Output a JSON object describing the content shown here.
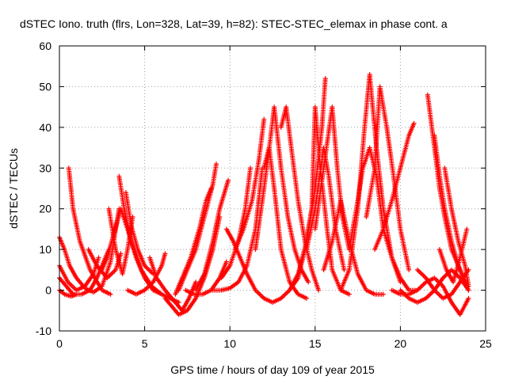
{
  "chart_data": {
    "type": "scatter",
    "title": "dSTEC Iono. truth (flrs, Lon=328, Lat=39, h=82): STEC-STEC_elemax in phase cont. a",
    "xlabel": "GPS time / hours of day 109 of year 2015",
    "ylabel": "dSTEC  / TECUs",
    "xlim": [
      0,
      25
    ],
    "ylim": [
      -10,
      60
    ],
    "xticks": [
      0,
      5,
      10,
      15,
      20,
      25
    ],
    "yticks": [
      -10,
      0,
      10,
      20,
      30,
      40,
      50,
      60
    ],
    "grid": true,
    "marker": "plus",
    "color": "#ff0000",
    "series": [
      {
        "arcs": [
          {
            "x": [
              0.0,
              0.3,
              0.6,
              1.0,
              1.5,
              2.0,
              2.5,
              3.0,
              3.3,
              3.5
            ],
            "y": [
              13,
              10,
              6,
              3,
              0.5,
              -0.5,
              1,
              7,
              15,
              20
            ]
          },
          {
            "x": [
              0.0,
              0.5,
              1.0,
              1.5,
              2.0,
              2.3
            ],
            "y": [
              6,
              2,
              0,
              1,
              4,
              8
            ]
          },
          {
            "x": [
              0.0,
              0.4,
              0.8,
              1.3,
              1.8,
              2.2,
              2.6,
              2.9
            ],
            "y": [
              3,
              1,
              -1,
              -1,
              0,
              3,
              7,
              10
            ]
          },
          {
            "x": [
              0.0,
              0.3,
              0.7,
              1.0
            ],
            "y": [
              0,
              -1,
              -1.5,
              -1
            ]
          },
          {
            "x": [
              0.55,
              0.8,
              1.2,
              1.8,
              2.5,
              3.0
            ],
            "y": [
              30,
              20,
              12,
              5,
              0,
              -1
            ]
          },
          {
            "x": [
              1.7,
              2.2,
              2.8,
              3.3,
              3.6
            ],
            "y": [
              10,
              6,
              3,
              5,
              9
            ]
          },
          {
            "x": [
              2.5,
              2.8,
              3.2,
              3.6,
              4.0,
              4.5,
              5.0,
              5.5,
              6.0
            ],
            "y": [
              5,
              8,
              14,
              20,
              15,
              8,
              3,
              0,
              -1
            ]
          },
          {
            "x": [
              2.9,
              3.3,
              3.7,
              4.0,
              4.3
            ],
            "y": [
              20,
              10,
              4,
              10,
              18
            ]
          },
          {
            "x": [
              3.5,
              3.8,
              4.2,
              4.8,
              5.4,
              6.0,
              6.5,
              7.0
            ],
            "y": [
              28,
              20,
              12,
              5,
              1,
              -1,
              -2,
              -3
            ]
          },
          {
            "x": [
              3.9,
              4.2,
              4.6,
              5.0,
              5.5
            ],
            "y": [
              24,
              16,
              10,
              6,
              4
            ]
          },
          {
            "x": [
              4.0,
              4.5,
              5.0,
              5.5,
              6.0,
              6.2
            ],
            "y": [
              0,
              -1,
              0,
              2,
              6,
              9
            ]
          },
          {
            "x": [
              5.3,
              5.7,
              6.2,
              6.8,
              7.2,
              7.6,
              8.0
            ],
            "y": [
              8,
              3,
              0,
              -3,
              -5,
              -2,
              2
            ]
          },
          {
            "x": [
              6.2,
              6.6,
              7.0,
              7.5,
              8.0,
              8.5,
              9.0,
              9.4
            ],
            "y": [
              -2,
              -4,
              -6,
              -5,
              -2,
              3,
              10,
              18
            ]
          },
          {
            "x": [
              6.8,
              7.2,
              7.7,
              8.2,
              8.6,
              8.9
            ],
            "y": [
              -1,
              3,
              8,
              15,
              22,
              25
            ]
          },
          {
            "x": [
              7.0,
              7.5,
              8.0,
              8.5,
              9.0,
              9.2
            ],
            "y": [
              0,
              5,
              10,
              18,
              26,
              31
            ]
          },
          {
            "x": [
              7.4,
              7.9,
              8.4,
              8.9,
              9.4,
              9.8
            ],
            "y": [
              0,
              -1,
              -1,
              0,
              3,
              7
            ]
          },
          {
            "x": [
              8.0,
              8.5,
              9.0,
              9.4,
              9.9
            ],
            "y": [
              0,
              4,
              12,
              20,
              27
            ]
          },
          {
            "x": [
              9.0,
              9.5,
              10.0,
              10.5,
              11.0,
              11.5,
              11.9
            ],
            "y": [
              0,
              0,
              0.5,
              2,
              6,
              15,
              30
            ]
          },
          {
            "x": [
              9.5,
              10.0,
              10.5,
              10.9,
              11.2
            ],
            "y": [
              3,
              6,
              12,
              20,
              30
            ]
          },
          {
            "x": [
              9.8,
              10.2,
              10.6,
              11.0,
              11.5,
              12.0,
              12.5,
              13.0,
              13.5,
              14.0
            ],
            "y": [
              15,
              12,
              8,
              4,
              0,
              -2,
              -3,
              -2,
              0,
              3
            ]
          },
          {
            "x": [
              10.3,
              10.8,
              11.3,
              11.7,
              12.0
            ],
            "y": [
              10,
              15,
              22,
              32,
              42
            ]
          },
          {
            "x": [
              11.5,
              12.0,
              12.4,
              12.6,
              13.0,
              13.4,
              13.8,
              14.2,
              14.6
            ],
            "y": [
              10,
              25,
              38,
              45,
              30,
              18,
              10,
              5,
              2
            ]
          },
          {
            "x": [
              12.0,
              12.3,
              12.6,
              13.0,
              13.5,
              14.0,
              14.5
            ],
            "y": [
              30,
              35,
              25,
              10,
              2,
              -1,
              -2
            ]
          },
          {
            "x": [
              13.0,
              13.3,
              13.6,
              14.0,
              14.4,
              14.8,
              15.2
            ],
            "y": [
              40,
              45,
              35,
              22,
              12,
              5,
              0
            ]
          },
          {
            "x": [
              13.5,
              14.0,
              14.5,
              15.0,
              15.4,
              15.6
            ],
            "y": [
              0,
              4,
              12,
              25,
              40,
              52
            ]
          },
          {
            "x": [
              14.0,
              14.4,
              14.8,
              15.0,
              15.3,
              15.7,
              16.0,
              16.5,
              17.0
            ],
            "y": [
              3,
              10,
              20,
              45,
              30,
              15,
              5,
              0,
              -1
            ]
          },
          {
            "x": [
              14.5,
              15.0,
              15.5,
              15.8,
              16.2,
              16.7
            ],
            "y": [
              10,
              20,
              35,
              28,
              15,
              5
            ]
          },
          {
            "x": [
              15.0,
              15.5,
              16.0,
              16.3,
              16.6,
              17.0
            ],
            "y": [
              15,
              30,
              45,
              30,
              18,
              10
            ]
          },
          {
            "x": [
              15.5,
              16.0,
              16.5,
              17.0,
              17.5,
              18.0,
              18.5,
              19.0
            ],
            "y": [
              5,
              12,
              22,
              12,
              4,
              0,
              -1,
              -1
            ]
          },
          {
            "x": [
              16.5,
              17.0,
              17.5,
              17.9,
              18.2,
              18.6,
              19.0,
              19.5,
              20.0
            ],
            "y": [
              0,
              5,
              20,
              40,
              53,
              35,
              20,
              8,
              2
            ]
          },
          {
            "x": [
              17.0,
              17.5,
              17.8,
              18.2,
              18.6,
              19.0,
              19.5,
              20.0,
              20.5,
              21.0
            ],
            "y": [
              10,
              22,
              30,
              35,
              28,
              15,
              8,
              3,
              0,
              0
            ]
          },
          {
            "x": [
              18.0,
              18.5,
              18.8,
              19.2,
              19.6,
              20.0,
              20.5
            ],
            "y": [
              18,
              30,
              50,
              40,
              28,
              15,
              5
            ]
          },
          {
            "x": [
              18.5,
              19.0,
              19.5,
              20.0,
              20.5,
              20.8
            ],
            "y": [
              10,
              15,
              22,
              30,
              38,
              41
            ]
          },
          {
            "x": [
              19.5,
              20.0,
              20.5,
              21.0,
              21.5,
              22.0,
              22.5,
              23.0,
              23.5,
              24.0
            ],
            "y": [
              0,
              -1,
              -1,
              0,
              2,
              3,
              1,
              -3,
              -6,
              -2
            ]
          },
          {
            "x": [
              20.0,
              20.5,
              21.0,
              21.5,
              22.0,
              22.5,
              23.0,
              23.5,
              24.0
            ],
            "y": [
              0,
              -2,
              -3,
              -2,
              0,
              3,
              5,
              3,
              0
            ]
          },
          {
            "x": [
              21.6,
              22.0,
              22.3,
              22.6,
              23.0,
              23.5,
              24.0
            ],
            "y": [
              48,
              35,
              25,
              18,
              10,
              5,
              0
            ]
          },
          {
            "x": [
              22.0,
              22.3,
              22.6,
              23.0,
              23.4,
              23.8
            ],
            "y": [
              38,
              28,
              20,
              12,
              6,
              2
            ]
          },
          {
            "x": [
              22.6,
              23.0,
              23.4,
              23.8,
              24.0
            ],
            "y": [
              30,
              20,
              12,
              6,
              1
            ]
          },
          {
            "x": [
              22.3,
              22.7,
              23.1,
              23.5,
              23.9
            ],
            "y": [
              10,
              5,
              2,
              8,
              15
            ]
          },
          {
            "x": [
              21.0,
              21.5,
              22.0,
              22.5,
              23.0,
              23.5,
              24.0
            ],
            "y": [
              5,
              3,
              0,
              -2,
              -1,
              2,
              5
            ]
          }
        ]
      }
    ]
  }
}
